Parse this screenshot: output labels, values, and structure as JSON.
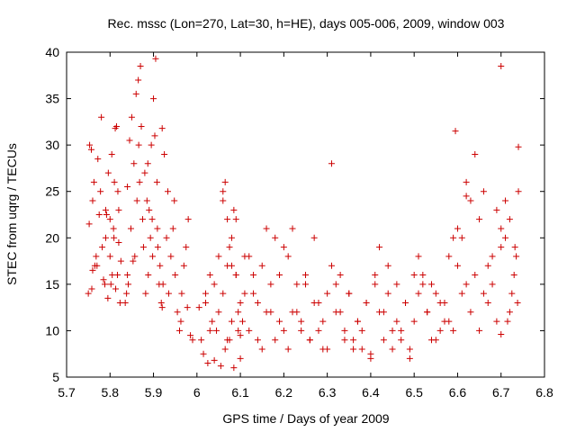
{
  "chart_data": {
    "type": "scatter",
    "title": "Rec. mssc (Lon=270, Lat=30, h=HE), days 005-006, 2009, window 003",
    "xlabel": "GPS time / Days of year 2009",
    "ylabel": "STEC from uqrg / TECUs",
    "xlim": [
      5.7,
      6.8
    ],
    "ylim": [
      5,
      40
    ],
    "xticks": [
      "5.7",
      "5.8",
      "5.9",
      "6",
      "6.1",
      "6.2",
      "6.3",
      "6.4",
      "6.5",
      "6.6",
      "6.7",
      "6.8"
    ],
    "yticks": [
      "5",
      "10",
      "15",
      "20",
      "25",
      "30",
      "35",
      "40"
    ],
    "grid": false,
    "legend": "none",
    "marker": "plus",
    "color": "#cc0000",
    "series": [
      {
        "x": [
          5.75,
          5.76,
          5.752,
          5.763,
          5.768,
          5.757,
          5.78,
          5.775,
          5.77,
          5.785,
          5.79,
          5.795,
          5.778,
          5.772,
          5.788,
          5.765,
          5.76,
          5.753,
          5.758,
          5.782,
          5.8,
          5.805,
          5.81,
          5.815,
          5.82,
          5.825,
          5.8,
          5.808,
          5.813,
          5.82,
          5.79,
          5.796,
          5.802,
          5.809,
          5.818,
          5.823,
          5.804,
          5.812,
          5.792,
          5.817,
          5.84,
          5.845,
          5.85,
          5.855,
          5.86,
          5.865,
          5.87,
          5.875,
          5.835,
          5.842,
          5.848,
          5.857,
          5.862,
          5.868,
          5.872,
          5.877,
          5.838,
          5.853,
          5.866,
          5.84,
          5.88,
          5.885,
          5.89,
          5.895,
          5.9,
          5.905,
          5.91,
          5.915,
          5.92,
          5.882,
          5.888,
          5.893,
          5.898,
          5.903,
          5.908,
          5.913,
          5.918,
          5.887,
          5.897,
          5.909,
          5.92,
          5.925,
          5.93,
          5.935,
          5.94,
          5.945,
          5.95,
          5.955,
          5.96,
          5.965,
          5.97,
          5.975,
          5.98,
          5.985,
          5.99,
          5.922,
          5.933,
          5.948,
          5.963,
          5.978,
          6.005,
          6.01,
          6.015,
          6.02,
          6.025,
          6.03,
          6.035,
          6.04,
          6.045,
          6.05,
          6.055,
          6.06,
          6.065,
          6.07,
          6.075,
          6.08,
          6.085,
          6.09,
          6.095,
          6.1,
          6.02,
          6.03,
          6.04,
          6.05,
          6.06,
          6.07,
          6.08,
          6.09,
          6.1,
          6.11,
          6.06,
          6.065,
          6.07,
          6.075,
          6.08,
          6.085,
          6.09,
          6.095,
          6.1,
          6.105,
          6.11,
          6.12,
          6.13,
          6.14,
          6.15,
          6.16,
          6.17,
          6.18,
          6.19,
          6.2,
          6.12,
          6.13,
          6.14,
          6.15,
          6.16,
          6.17,
          6.18,
          6.19,
          6.2,
          6.21,
          6.21,
          6.22,
          6.23,
          6.24,
          6.25,
          6.26,
          6.27,
          6.28,
          6.29,
          6.3,
          6.22,
          6.23,
          6.24,
          6.25,
          6.26,
          6.27,
          6.28,
          6.29,
          6.3,
          6.31,
          6.31,
          6.32,
          6.33,
          6.34,
          6.35,
          6.36,
          6.37,
          6.38,
          6.39,
          6.4,
          6.32,
          6.33,
          6.34,
          6.35,
          6.36,
          6.37,
          6.38,
          6.39,
          6.4,
          6.41,
          6.41,
          6.42,
          6.43,
          6.44,
          6.45,
          6.46,
          6.47,
          6.48,
          6.49,
          6.5,
          6.42,
          6.43,
          6.44,
          6.45,
          6.46,
          6.47,
          6.48,
          6.49,
          6.5,
          6.51,
          6.51,
          6.52,
          6.53,
          6.54,
          6.55,
          6.56,
          6.57,
          6.58,
          6.59,
          6.6,
          6.52,
          6.53,
          6.54,
          6.55,
          6.56,
          6.57,
          6.58,
          6.59,
          6.6,
          6.61,
          6.61,
          6.62,
          6.63,
          6.64,
          6.65,
          6.66,
          6.67,
          6.68,
          6.69,
          6.7,
          6.62,
          6.63,
          6.64,
          6.65,
          6.66,
          6.67,
          6.68,
          6.69,
          6.7,
          6.71,
          6.71,
          6.72,
          6.73,
          6.735,
          6.74,
          6.715,
          6.725,
          6.732,
          6.738,
          6.7,
          6.595,
          6.62,
          6.7,
          6.74,
          6.72
        ],
        "y": [
          14,
          16.5,
          21.5,
          26,
          18,
          29.5,
          33,
          22.5,
          17,
          15.5,
          20,
          13.5,
          25,
          28.5,
          15,
          17,
          24,
          30,
          14.5,
          19,
          22,
          16,
          26,
          32,
          23,
          17.5,
          18,
          21,
          14.5,
          19.5,
          23,
          27,
          15,
          20,
          25,
          13,
          29,
          31.8,
          22.5,
          16,
          25.5,
          30.5,
          33,
          28,
          35.5,
          37,
          38.5,
          22,
          13,
          15,
          21,
          18,
          24,
          26,
          32,
          19,
          14,
          17.5,
          30,
          16,
          27,
          24,
          23,
          30,
          35,
          39.3,
          19,
          17,
          12.5,
          14,
          16,
          20,
          18,
          31,
          26,
          15,
          13,
          28,
          22,
          21,
          31.8,
          29,
          20,
          14,
          18,
          21,
          16,
          12,
          10,
          14,
          17,
          19,
          22,
          9.5,
          9,
          15,
          25,
          24,
          11,
          12.5,
          12.5,
          9,
          7.5,
          14,
          6.5,
          16,
          11,
          6.8,
          10,
          18,
          6.2,
          25,
          8,
          17,
          9,
          20,
          6,
          22,
          10,
          7,
          13,
          10,
          15,
          12,
          14,
          9,
          11,
          16,
          13,
          18,
          24,
          26,
          22,
          19,
          17,
          23,
          16,
          12,
          9.5,
          11,
          14,
          18,
          16,
          13,
          17,
          12,
          15,
          20,
          11,
          19,
          10,
          14,
          9,
          8,
          21,
          12,
          9,
          16,
          10,
          8,
          18,
          12,
          15,
          11,
          16,
          9,
          13,
          10,
          8,
          14,
          21,
          12,
          10,
          15,
          9,
          20,
          13,
          11,
          8,
          17,
          28,
          12,
          16,
          10,
          14,
          9,
          11,
          8,
          13,
          7,
          15,
          12,
          9,
          14,
          8,
          11,
          10,
          13,
          7.5,
          16,
          15,
          12,
          9,
          14,
          8,
          11,
          10,
          13,
          7,
          16,
          19,
          12,
          17,
          10,
          15,
          9,
          13,
          8,
          11,
          14,
          18,
          15,
          12,
          9,
          14,
          10,
          13,
          11,
          20,
          17,
          16,
          12,
          15,
          9,
          13,
          11,
          18,
          10,
          21,
          14,
          20,
          15,
          12,
          16,
          10,
          14,
          13,
          18,
          11,
          19,
          26,
          24,
          29,
          22,
          25,
          17,
          15,
          23,
          21,
          20,
          24,
          22,
          16,
          18,
          25,
          11,
          14,
          19,
          13,
          38.5,
          31.5,
          24.5,
          9.6,
          29.8,
          12
        ]
      }
    ]
  }
}
